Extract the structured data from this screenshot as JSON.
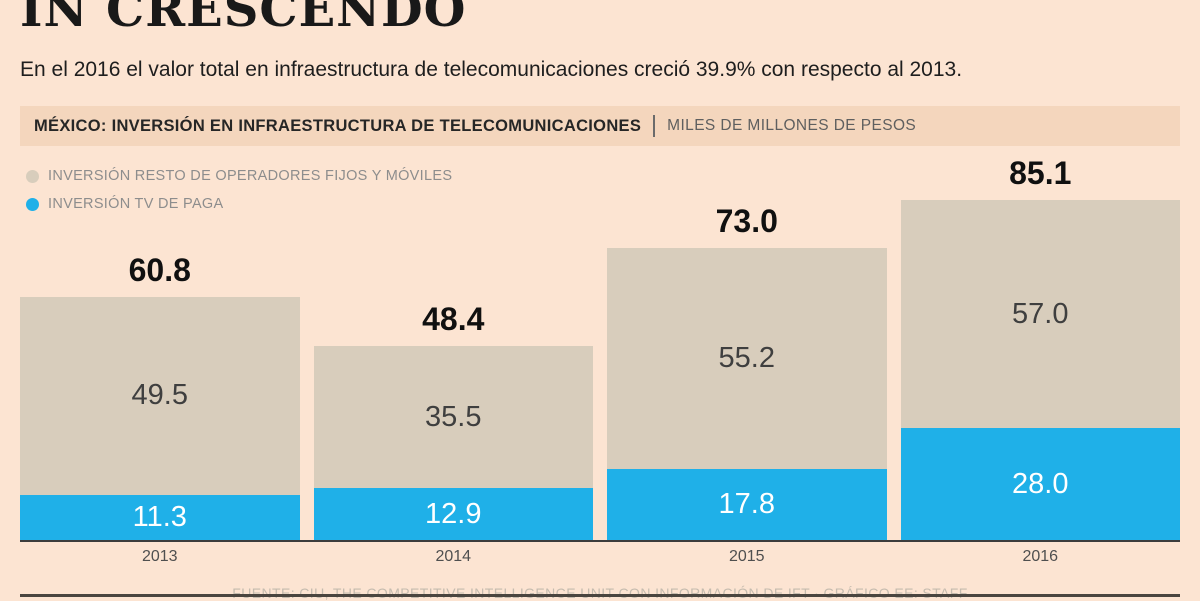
{
  "title": "IN CRESCENDO",
  "subtitle": "En el 2016 el valor total en infraestructura de telecomunicaciones creció 39.9% con respecto al 2013.",
  "header": {
    "title": "MÉXICO: INVERSIÓN EN INFRAESTRUCTURA DE TELECOMUNICACIONES",
    "units": "MILES DE MILLONES DE PESOS"
  },
  "legend": [
    {
      "label": "INVERSIÓN RESTO DE OPERADORES FIJOS Y MÓVILES",
      "color": "#d8cdbc"
    },
    {
      "label": "INVERSIÓN TV DE PAGA",
      "color": "#1fb0e8"
    }
  ],
  "footer": "FUENTE: CIU, THE COMPETITIVE INTELLIGENCE UNIT CON INFORMACIÓN DE IFT · GRÁFICO EE: STAFF",
  "chart_data": {
    "type": "bar",
    "stacked": true,
    "title": "MÉXICO: INVERSIÓN EN INFRAESTRUCTURA DE TELECOMUNICACIONES",
    "units": "MILES DE MILLONES DE PESOS",
    "categories": [
      "2013",
      "2014",
      "2015",
      "2016"
    ],
    "series": [
      {
        "name": "INVERSIÓN TV DE PAGA",
        "color": "#1fb0e8",
        "values": [
          11.3,
          12.9,
          17.8,
          28.0
        ]
      },
      {
        "name": "INVERSIÓN RESTO DE OPERADORES FIJOS Y MÓVILES",
        "color": "#d8cdbc",
        "values": [
          49.5,
          35.5,
          55.2,
          57.0
        ]
      }
    ],
    "totals": [
      60.8,
      48.4,
      73.0,
      85.1
    ],
    "xlabel": "",
    "ylabel": "",
    "ylim": [
      0,
      90
    ],
    "grid": false,
    "legend_position": "top-left"
  }
}
